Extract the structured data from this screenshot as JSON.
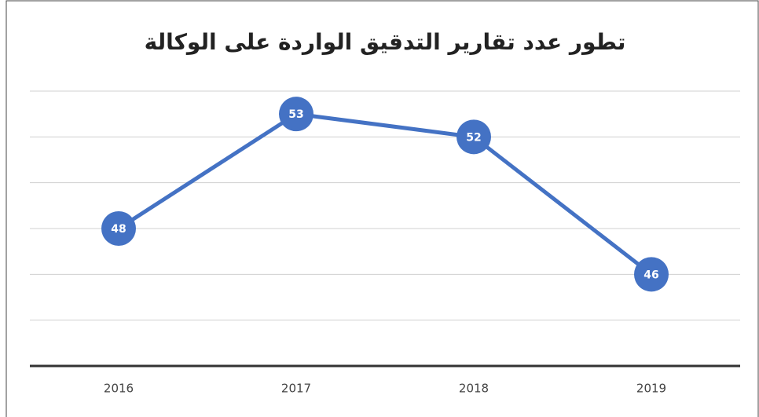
{
  "chart_data": {
    "type": "line",
    "title": "تطور عدد تقارير التدقيق الواردة على الوكالة",
    "categories": [
      "2016",
      "2017",
      "2018",
      "2019"
    ],
    "series": [
      {
        "color": "#4472c4",
        "values": [
          48,
          53,
          52,
          46
        ]
      }
    ],
    "ylim": [
      42,
      54
    ],
    "yticks": [
      42,
      44,
      46,
      48,
      50,
      52,
      54
    ],
    "grid": true
  }
}
